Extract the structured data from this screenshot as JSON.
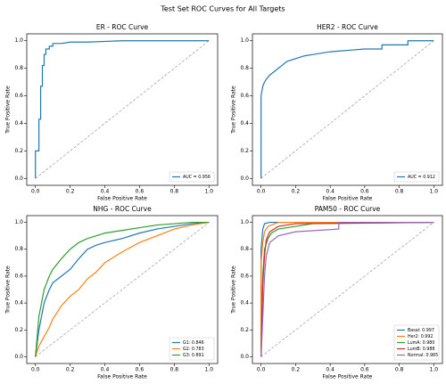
{
  "title": "Test Set ROC Curves for All Targets",
  "chart_data": [
    {
      "type": "line",
      "title": "ER - ROC Curve",
      "xlabel": "False Positive Rate",
      "ylabel": "True Positive Rate",
      "xlim": [
        -0.05,
        1.05
      ],
      "ylim": [
        -0.05,
        1.05
      ],
      "xticks": [
        {
          "value": 0,
          "label": "0.0"
        },
        0.2,
        0.4,
        0.6,
        0.8,
        {
          "value": 1,
          "label": "1.0"
        }
      ],
      "yticks": [
        {
          "value": 0,
          "label": "0.0"
        },
        0.2,
        0.4,
        0.6,
        0.8,
        {
          "value": 1,
          "label": "1.0"
        }
      ],
      "legend": "lower right",
      "series": [
        {
          "name": "AUC = 0.956",
          "color": "#1f77b4",
          "x": [
            0,
            0,
            0.02,
            0.02,
            0.03,
            0.03,
            0.04,
            0.04,
            0.05,
            0.05,
            0.06,
            0.06,
            0.08,
            0.08,
            0.1,
            0.1,
            0.15,
            0.2,
            0.3,
            0.5,
            1.0
          ],
          "values": [
            0,
            0.2,
            0.2,
            0.43,
            0.43,
            0.67,
            0.67,
            0.82,
            0.82,
            0.9,
            0.9,
            0.94,
            0.94,
            0.96,
            0.96,
            0.98,
            0.98,
            0.99,
            0.99,
            1.0,
            1.0
          ]
        }
      ]
    },
    {
      "type": "line",
      "title": "HER2 - ROC Curve",
      "xlabel": "False Positive Rate",
      "ylabel": "True Positive Rate",
      "xlim": [
        -0.05,
        1.05
      ],
      "ylim": [
        -0.05,
        1.05
      ],
      "xticks": [
        {
          "value": 0,
          "label": "0.0"
        },
        0.2,
        0.4,
        0.6,
        0.8,
        {
          "value": 1,
          "label": "1.0"
        }
      ],
      "yticks": [
        {
          "value": 0,
          "label": "0.0"
        },
        0.2,
        0.4,
        0.6,
        0.8,
        {
          "value": 1,
          "label": "1.0"
        }
      ],
      "legend": "lower right",
      "series": [
        {
          "name": "AUC = 0.912",
          "color": "#1f77b4",
          "x": [
            0,
            0,
            0.01,
            0.02,
            0.03,
            0.05,
            0.08,
            0.1,
            0.12,
            0.15,
            0.2,
            0.25,
            0.3,
            0.4,
            0.5,
            0.6,
            0.7,
            0.7,
            0.85,
            0.85,
            1.0
          ],
          "values": [
            0,
            0.6,
            0.67,
            0.7,
            0.72,
            0.75,
            0.78,
            0.8,
            0.82,
            0.85,
            0.87,
            0.89,
            0.9,
            0.92,
            0.93,
            0.94,
            0.94,
            0.97,
            0.97,
            1.0,
            1.0
          ]
        }
      ]
    },
    {
      "type": "line",
      "title": "NHG - ROC Curve",
      "xlabel": "False Positive Rate",
      "ylabel": "True Positive Rate",
      "xlim": [
        -0.05,
        1.05
      ],
      "ylim": [
        -0.05,
        1.05
      ],
      "xticks": [
        {
          "value": 0,
          "label": "0.0"
        },
        0.2,
        0.4,
        0.6,
        0.8,
        {
          "value": 1,
          "label": "1.0"
        }
      ],
      "yticks": [
        {
          "value": 0,
          "label": "0.0"
        },
        0.2,
        0.4,
        0.6,
        0.8,
        {
          "value": 1,
          "label": "1.0"
        }
      ],
      "legend": "lower right",
      "series": [
        {
          "name": "G1: 0.846",
          "color": "#1f77b4",
          "x": [
            0,
            0.02,
            0.05,
            0.08,
            0.1,
            0.15,
            0.2,
            0.25,
            0.3,
            0.35,
            0.4,
            0.5,
            0.6,
            0.7,
            0.8,
            0.9,
            1.0
          ],
          "values": [
            0,
            0.2,
            0.4,
            0.5,
            0.55,
            0.6,
            0.65,
            0.73,
            0.8,
            0.83,
            0.85,
            0.88,
            0.92,
            0.95,
            0.97,
            0.99,
            1.0
          ]
        },
        {
          "name": "G2: 0.783",
          "color": "#ff7f0e",
          "x": [
            0,
            0.02,
            0.05,
            0.08,
            0.1,
            0.15,
            0.2,
            0.25,
            0.3,
            0.35,
            0.4,
            0.5,
            0.6,
            0.7,
            0.8,
            0.9,
            1.0
          ],
          "values": [
            0,
            0.08,
            0.15,
            0.22,
            0.28,
            0.38,
            0.45,
            0.5,
            0.58,
            0.63,
            0.7,
            0.78,
            0.85,
            0.9,
            0.95,
            0.98,
            1.0
          ]
        },
        {
          "name": "G3: 0.891",
          "color": "#2ca02c",
          "x": [
            0,
            0.02,
            0.05,
            0.08,
            0.1,
            0.15,
            0.2,
            0.25,
            0.3,
            0.35,
            0.4,
            0.5,
            0.6,
            0.7,
            0.8,
            0.9,
            1.0
          ],
          "values": [
            0,
            0.3,
            0.5,
            0.6,
            0.65,
            0.73,
            0.8,
            0.85,
            0.88,
            0.9,
            0.92,
            0.94,
            0.96,
            0.98,
            0.99,
            1.0,
            1.0
          ]
        }
      ]
    },
    {
      "type": "line",
      "title": "PAM50 - ROC Curve",
      "xlabel": "False Positive Rate",
      "ylabel": "True Positive Rate",
      "xlim": [
        -0.05,
        1.05
      ],
      "ylim": [
        -0.05,
        1.05
      ],
      "xticks": [
        {
          "value": 0,
          "label": "0.0"
        },
        0.2,
        0.4,
        0.6,
        0.8,
        {
          "value": 1,
          "label": "1.0"
        }
      ],
      "yticks": [
        {
          "value": 0,
          "label": "0.0"
        },
        0.2,
        0.4,
        0.6,
        0.8,
        {
          "value": 1,
          "label": "1.0"
        }
      ],
      "legend": "lower right",
      "series": [
        {
          "name": "Basal: 0.997",
          "color": "#1f77b4",
          "x": [
            0,
            0,
            0.01,
            0.02,
            0.05,
            1.0
          ],
          "values": [
            0,
            0.8,
            0.95,
            0.99,
            1,
            1
          ]
        },
        {
          "name": "Her2: 0.992",
          "color": "#ff7f0e",
          "x": [
            0,
            0,
            0.01,
            0.02,
            0.04,
            0.1,
            1
          ],
          "values": [
            0,
            0.7,
            0.85,
            0.93,
            0.97,
            1,
            1
          ]
        },
        {
          "name": "LumA: 0.980",
          "color": "#2ca02c",
          "x": [
            0,
            0.01,
            0.02,
            0.04,
            0.06,
            0.1,
            0.2,
            0.3,
            1
          ],
          "values": [
            0,
            0.6,
            0.8,
            0.88,
            0.92,
            0.95,
            0.97,
            0.99,
            1
          ]
        },
        {
          "name": "LumB: 0.988",
          "color": "#d62728",
          "x": [
            0,
            0.01,
            0.02,
            0.03,
            0.05,
            0.1,
            0.2,
            1
          ],
          "values": [
            0,
            0.55,
            0.75,
            0.87,
            0.93,
            0.97,
            0.99,
            1
          ]
        },
        {
          "name": "Normal: 0.965",
          "color": "#9467bd",
          "x": [
            0,
            0.01,
            0.02,
            0.03,
            0.05,
            0.1,
            0.2,
            0.45,
            0.45,
            1
          ],
          "values": [
            0,
            0.3,
            0.6,
            0.75,
            0.85,
            0.9,
            0.93,
            0.95,
            1,
            1
          ]
        }
      ]
    }
  ]
}
